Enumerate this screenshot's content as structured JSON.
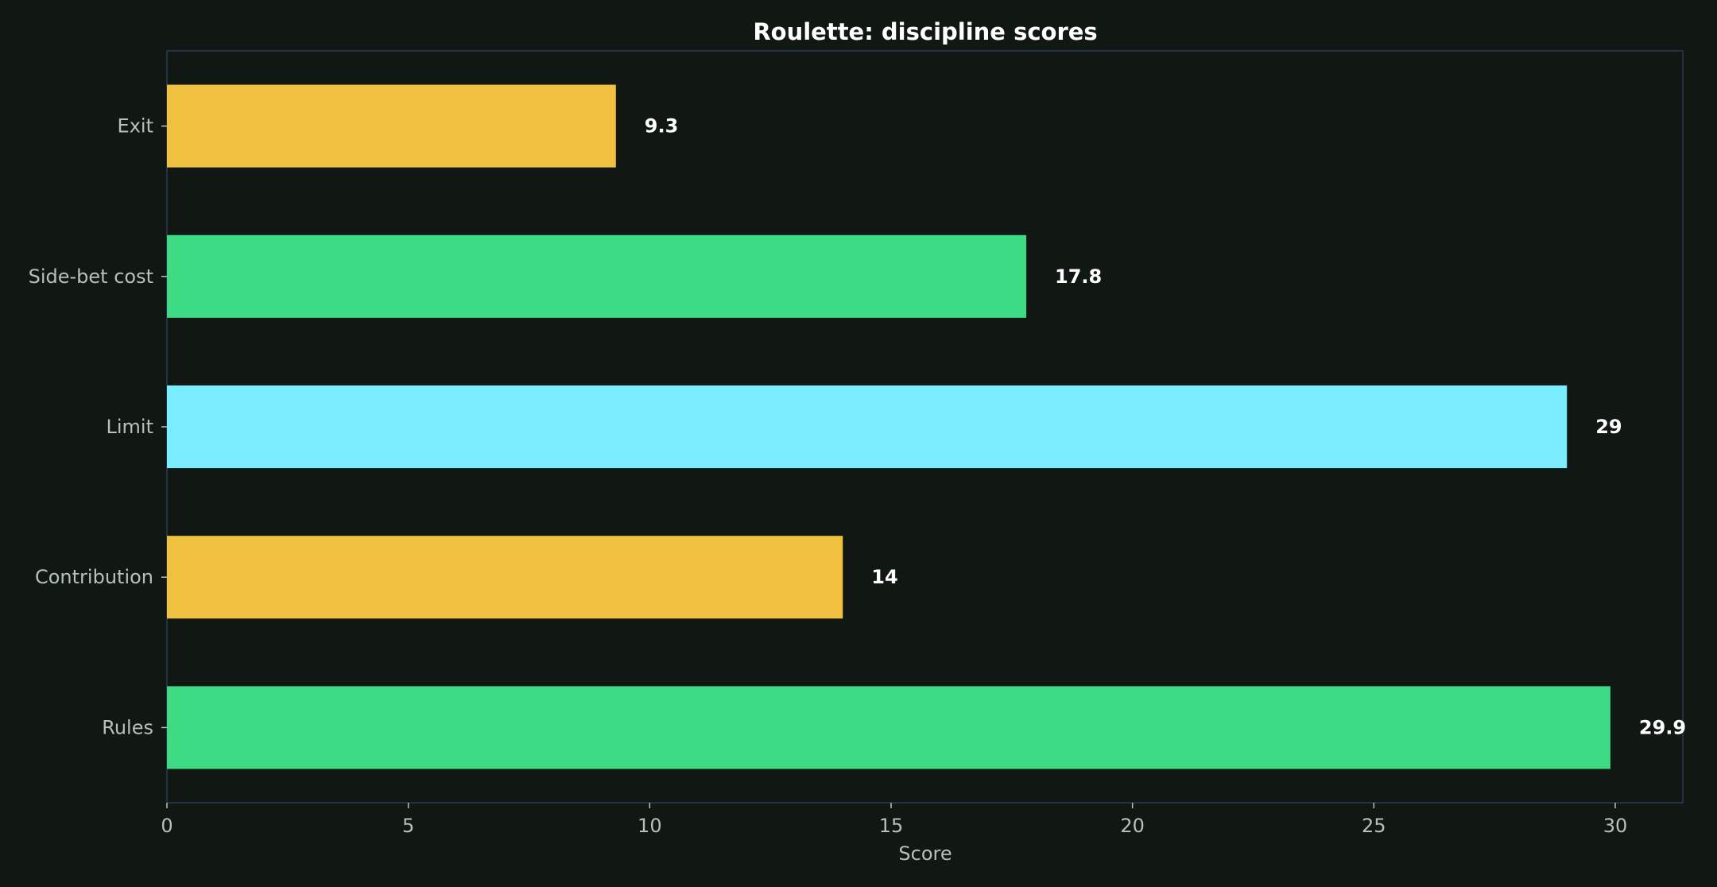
{
  "chart_data": {
    "type": "bar",
    "orientation": "horizontal",
    "title": "Roulette: discipline scores",
    "xlabel": "Score",
    "ylabel": "",
    "categories": [
      "Exit",
      "Side-bet cost",
      "Limit",
      "Contribution",
      "Rules"
    ],
    "values": [
      9.3,
      17.8,
      29,
      14,
      29.9
    ],
    "value_labels": [
      "9.3",
      "17.8",
      "29",
      "14",
      "29.9"
    ],
    "xlim": [
      0,
      31.4
    ],
    "xticks": [
      0,
      5,
      10,
      15,
      20,
      25,
      30
    ],
    "xtick_labels": [
      "0",
      "5",
      "10",
      "15",
      "20",
      "25",
      "30"
    ],
    "bar_colors": [
      "#f0c040",
      "#3ddc84",
      "#7aeeff",
      "#f0c040",
      "#3ddc84"
    ],
    "grid": false,
    "legend": "none"
  },
  "colors": {
    "background": "#111813",
    "axis": "#2a3a55",
    "tick_text": "#b6c2b6",
    "value_text": "#ffffff"
  }
}
